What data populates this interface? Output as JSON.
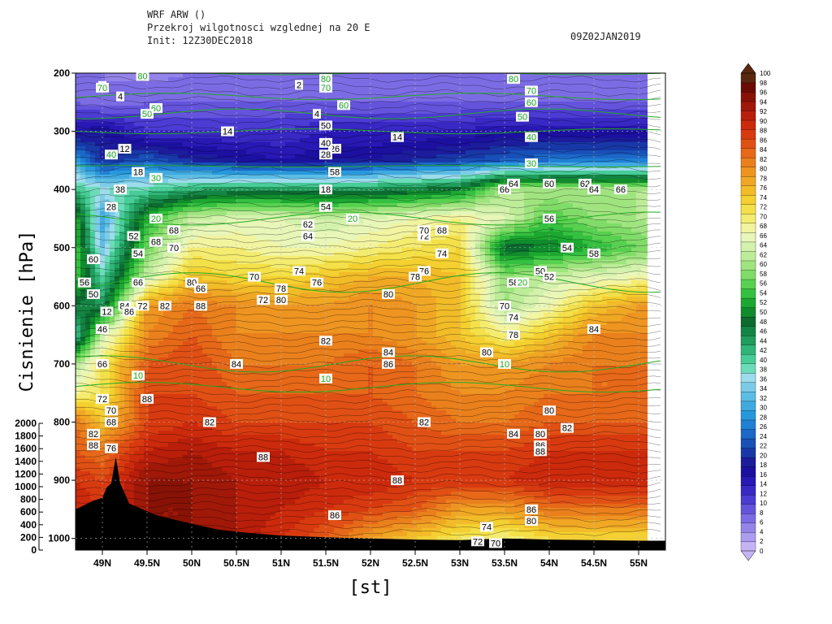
{
  "header": {
    "model": "WRF ARW ()",
    "description": "Przekroj wilgotnosci wzglednej na 20 E",
    "init": "Init: 12Z30DEC2018",
    "valid": "09Z02JAN2019"
  },
  "chart_data": {
    "type": "heatmap",
    "title": "Przekroj wilgotnosci wzglednej na 20 E",
    "xlabel": "[st]",
    "ylabel": "Cisnienie [hPa]",
    "x_ticks": [
      "49N",
      "49.5N",
      "50N",
      "50.5N",
      "51N",
      "51.5N",
      "52N",
      "52.5N",
      "53N",
      "53.5N",
      "54N",
      "54.5N",
      "55N"
    ],
    "x_tick_values": [
      49,
      49.5,
      50,
      50.5,
      51,
      51.5,
      52,
      52.5,
      53,
      53.5,
      54,
      54.5,
      55
    ],
    "xlim": [
      48.7,
      55.3
    ],
    "pressure_ticks": [
      200,
      300,
      400,
      500,
      600,
      700,
      800,
      900,
      1000
    ],
    "pressure_ticks_labels": [
      "200",
      "300",
      "400",
      "500",
      "600",
      "700",
      "800",
      "900",
      "1000"
    ],
    "ylim": [
      200,
      1020
    ],
    "height_ticks": [
      0,
      200,
      400,
      600,
      800,
      1000,
      1200,
      1400,
      1600,
      1800,
      2000
    ],
    "height_ticks_labels": [
      "0",
      "200",
      "400",
      "600",
      "800",
      "1000",
      "1200",
      "1400",
      "1600",
      "1800",
      "2000"
    ],
    "colorbar": {
      "levels": [
        0,
        2,
        4,
        6,
        8,
        10,
        12,
        14,
        16,
        18,
        20,
        22,
        24,
        26,
        28,
        30,
        32,
        34,
        36,
        38,
        40,
        42,
        44,
        46,
        48,
        50,
        52,
        54,
        56,
        58,
        60,
        62,
        64,
        66,
        68,
        70,
        72,
        74,
        76,
        78,
        80,
        82,
        84,
        86,
        88,
        90,
        92,
        94,
        96,
        98,
        100
      ],
      "labels": [
        "0",
        "2",
        "4",
        "6",
        "8",
        "10",
        "12",
        "14",
        "16",
        "18",
        "20",
        "22",
        "24",
        "26",
        "28",
        "30",
        "32",
        "34",
        "36",
        "38",
        "40",
        "42",
        "44",
        "46",
        "48",
        "50",
        "52",
        "54",
        "56",
        "58",
        "60",
        "62",
        "64",
        "66",
        "68",
        "70",
        "72",
        "74",
        "76",
        "78",
        "80",
        "82",
        "84",
        "86",
        "88",
        "90",
        "92",
        "94",
        "96",
        "98",
        "100"
      ],
      "colors": [
        "#c4b4f6",
        "#ac9cf0",
        "#9484ea",
        "#7c6ce4",
        "#6454dc",
        "#4c3cd4",
        "#3828c4",
        "#2818b4",
        "#1c10a0",
        "#1c1c9c",
        "#1838a8",
        "#1850b8",
        "#1c68c8",
        "#2080d4",
        "#2898dc",
        "#40aae0",
        "#5cbce4",
        "#7ccce8",
        "#9cdcec",
        "#6cdcb8",
        "#48cc98",
        "#30b478",
        "#209c5c",
        "#148444",
        "#0c6c30",
        "#108c2c",
        "#1ca830",
        "#34c040",
        "#58d050",
        "#80dc68",
        "#a0e480",
        "#bcec98",
        "#d4f2ac",
        "#e8f6b8",
        "#f2f4a0",
        "#f4ec70",
        "#f4e048",
        "#f4d030",
        "#f2bc28",
        "#f0a824",
        "#ee9420",
        "#ea801c",
        "#e66818",
        "#e05014",
        "#d83a10",
        "#cc2a0c",
        "#b81e0a",
        "#a01808",
        "#881206",
        "#6a0c04",
        "#5a2810"
      ]
    },
    "contour_labels_rh": [
      "10",
      "20",
      "30",
      "40",
      "50",
      "60",
      "70",
      "80"
    ],
    "contour_labels": [
      "2",
      "4",
      "12",
      "14",
      "18",
      "26",
      "28",
      "38",
      "46",
      "48",
      "50",
      "52",
      "54",
      "56",
      "58",
      "60",
      "62",
      "64",
      "66",
      "68",
      "70",
      "72",
      "74",
      "76",
      "78",
      "80",
      "82",
      "84",
      "86",
      "88"
    ],
    "rh_field_description_levels_hpa": [
      200,
      250,
      300,
      350,
      400,
      450,
      500,
      550,
      600,
      650,
      700,
      750,
      800,
      850,
      900,
      950,
      1000
    ],
    "rh_field_lat": [
      48.7,
      49.0,
      49.5,
      50.0,
      50.5,
      51.0,
      51.5,
      52.0,
      52.5,
      53.0,
      53.5,
      54.0,
      54.5,
      55.0,
      55.3
    ],
    "rh_field_values": [
      [
        6,
        6,
        5,
        6,
        6,
        6,
        6,
        6,
        6,
        6,
        6,
        6,
        6,
        6,
        6
      ],
      [
        8,
        6,
        8,
        8,
        8,
        8,
        8,
        8,
        8,
        8,
        8,
        8,
        8,
        8,
        8
      ],
      [
        16,
        18,
        12,
        12,
        12,
        12,
        14,
        14,
        14,
        14,
        16,
        16,
        16,
        16,
        16
      ],
      [
        30,
        20,
        24,
        20,
        18,
        16,
        18,
        18,
        20,
        22,
        24,
        26,
        26,
        26,
        26
      ],
      [
        42,
        38,
        40,
        44,
        46,
        46,
        46,
        46,
        48,
        50,
        62,
        62,
        62,
        62,
        62
      ],
      [
        54,
        30,
        54,
        64,
        66,
        66,
        64,
        66,
        68,
        70,
        66,
        56,
        60,
        62,
        64
      ],
      [
        56,
        34,
        58,
        70,
        70,
        68,
        68,
        70,
        72,
        74,
        48,
        50,
        54,
        58,
        60
      ],
      [
        56,
        40,
        64,
        76,
        74,
        74,
        76,
        78,
        78,
        76,
        60,
        64,
        66,
        68,
        70
      ],
      [
        48,
        46,
        80,
        84,
        82,
        80,
        80,
        82,
        80,
        76,
        62,
        68,
        76,
        80,
        80
      ],
      [
        40,
        64,
        82,
        86,
        82,
        82,
        82,
        82,
        80,
        76,
        70,
        76,
        82,
        82,
        82
      ],
      [
        62,
        72,
        86,
        88,
        84,
        84,
        84,
        86,
        84,
        80,
        80,
        82,
        84,
        84,
        84
      ],
      [
        70,
        72,
        88,
        88,
        86,
        86,
        86,
        86,
        84,
        82,
        82,
        84,
        84,
        84,
        84
      ],
      [
        84,
        76,
        88,
        90,
        88,
        88,
        88,
        88,
        86,
        84,
        84,
        86,
        86,
        86,
        86
      ],
      [
        86,
        84,
        92,
        94,
        92,
        92,
        90,
        90,
        88,
        88,
        88,
        90,
        90,
        90,
        90
      ],
      [
        90,
        88,
        96,
        96,
        94,
        94,
        92,
        92,
        90,
        90,
        90,
        92,
        92,
        92,
        92
      ],
      [
        92,
        90,
        96,
        96,
        94,
        92,
        90,
        88,
        86,
        80,
        80,
        84,
        84,
        84,
        84
      ],
      [
        94,
        92,
        96,
        96,
        94,
        90,
        86,
        80,
        76,
        72,
        70,
        74,
        74,
        74,
        74
      ]
    ]
  }
}
